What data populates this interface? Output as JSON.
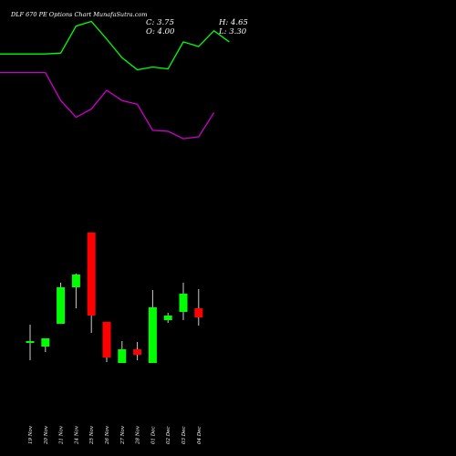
{
  "header": {
    "title": "DLF 670  PE Options  Chart MunafaSutra.com",
    "close_text": "C: 3.75",
    "high_text": "H: 4.65",
    "open_text": "O: 4.00",
    "low_text": "L: 3.30"
  },
  "colors": {
    "background": "#000000",
    "up": "#00ff00",
    "down": "#ff0000",
    "upper_line": "#00ff00",
    "lower_line": "#cc00cc",
    "text": "#ffffff"
  },
  "chart_data": {
    "type": "candlestick",
    "title": "DLF 670  PE Options  Chart MunafaSutra.com",
    "categories": [
      "19 Nov",
      "20 Nov",
      "21 Nov",
      "24 Nov",
      "25 Nov",
      "26 Nov",
      "27 Nov",
      "28 Nov",
      "01 Dec",
      "02 Dec",
      "03 Dec",
      "04 Dec"
    ],
    "candles": [
      {
        "date": "19 Nov",
        "open": 6.4,
        "high": 8.4,
        "low": 4.5,
        "close": 6.6
      },
      {
        "date": "20 Nov",
        "open": 6.0,
        "high": 6.9,
        "low": 5.4,
        "close": 6.9
      },
      {
        "date": "21 Nov",
        "open": 8.5,
        "high": 13.0,
        "low": 8.5,
        "close": 12.5
      },
      {
        "date": "24 Nov",
        "open": 12.5,
        "high": 14.0,
        "low": 10.2,
        "close": 13.9
      },
      {
        "date": "25 Nov",
        "open": 18.5,
        "high": 18.5,
        "low": 7.5,
        "close": 9.4
      },
      {
        "date": "26 Nov",
        "open": 8.7,
        "high": 8.7,
        "low": 4.3,
        "close": 4.8
      },
      {
        "date": "27 Nov",
        "open": 4.2,
        "high": 6.6,
        "low": 4.2,
        "close": 5.7
      },
      {
        "date": "28 Nov",
        "open": 5.7,
        "high": 6.5,
        "low": 4.5,
        "close": 5.1
      },
      {
        "date": "01 Dec",
        "open": 4.2,
        "high": 12.2,
        "low": 4.2,
        "close": 10.3
      },
      {
        "date": "02 Dec",
        "open": 8.9,
        "high": 9.7,
        "low": 8.6,
        "close": 9.4
      },
      {
        "date": "03 Dec",
        "open": 9.8,
        "high": 13.0,
        "low": 8.9,
        "close": 11.8
      },
      {
        "date": "04 Dec",
        "open": 10.2,
        "high": 12.3,
        "low": 8.3,
        "close": 9.2
      }
    ],
    "upper_band": [
      {
        "x": "19 Nov",
        "y": 91.0
      },
      {
        "x": "20 Nov",
        "y": 91.0
      },
      {
        "x": "21 Nov",
        "y": 91.5
      },
      {
        "x": "24 Nov",
        "y": 106.0
      },
      {
        "x": "25 Nov",
        "y": 108.5
      },
      {
        "x": "26 Nov",
        "y": 99.0
      },
      {
        "x": "27 Nov",
        "y": 89.0
      },
      {
        "x": "28 Nov",
        "y": 82.5
      },
      {
        "x": "01 Dec",
        "y": 84.0
      },
      {
        "x": "02 Dec",
        "y": 83.0
      },
      {
        "x": "03 Dec",
        "y": 97.5
      },
      {
        "x": "04 Dec",
        "y": 95.0
      },
      {
        "x": "05 Dec",
        "y": 103.5
      },
      {
        "x": "06 Dec",
        "y": 97.5
      }
    ],
    "lower_band": [
      {
        "x": "19 Nov",
        "y": 81.0
      },
      {
        "x": "20 Nov",
        "y": 81.0
      },
      {
        "x": "21 Nov",
        "y": 66.0
      },
      {
        "x": "24 Nov",
        "y": 57.0
      },
      {
        "x": "25 Nov",
        "y": 61.5
      },
      {
        "x": "26 Nov",
        "y": 71.5
      },
      {
        "x": "27 Nov",
        "y": 66.0
      },
      {
        "x": "28 Nov",
        "y": 64.0
      },
      {
        "x": "01 Dec",
        "y": 50.0
      },
      {
        "x": "02 Dec",
        "y": 49.5
      },
      {
        "x": "03 Dec",
        "y": 45.5
      },
      {
        "x": "04 Dec",
        "y": 46.5
      },
      {
        "x": "05 Dec",
        "y": 59.5
      }
    ],
    "grid": false,
    "legend": "none"
  }
}
